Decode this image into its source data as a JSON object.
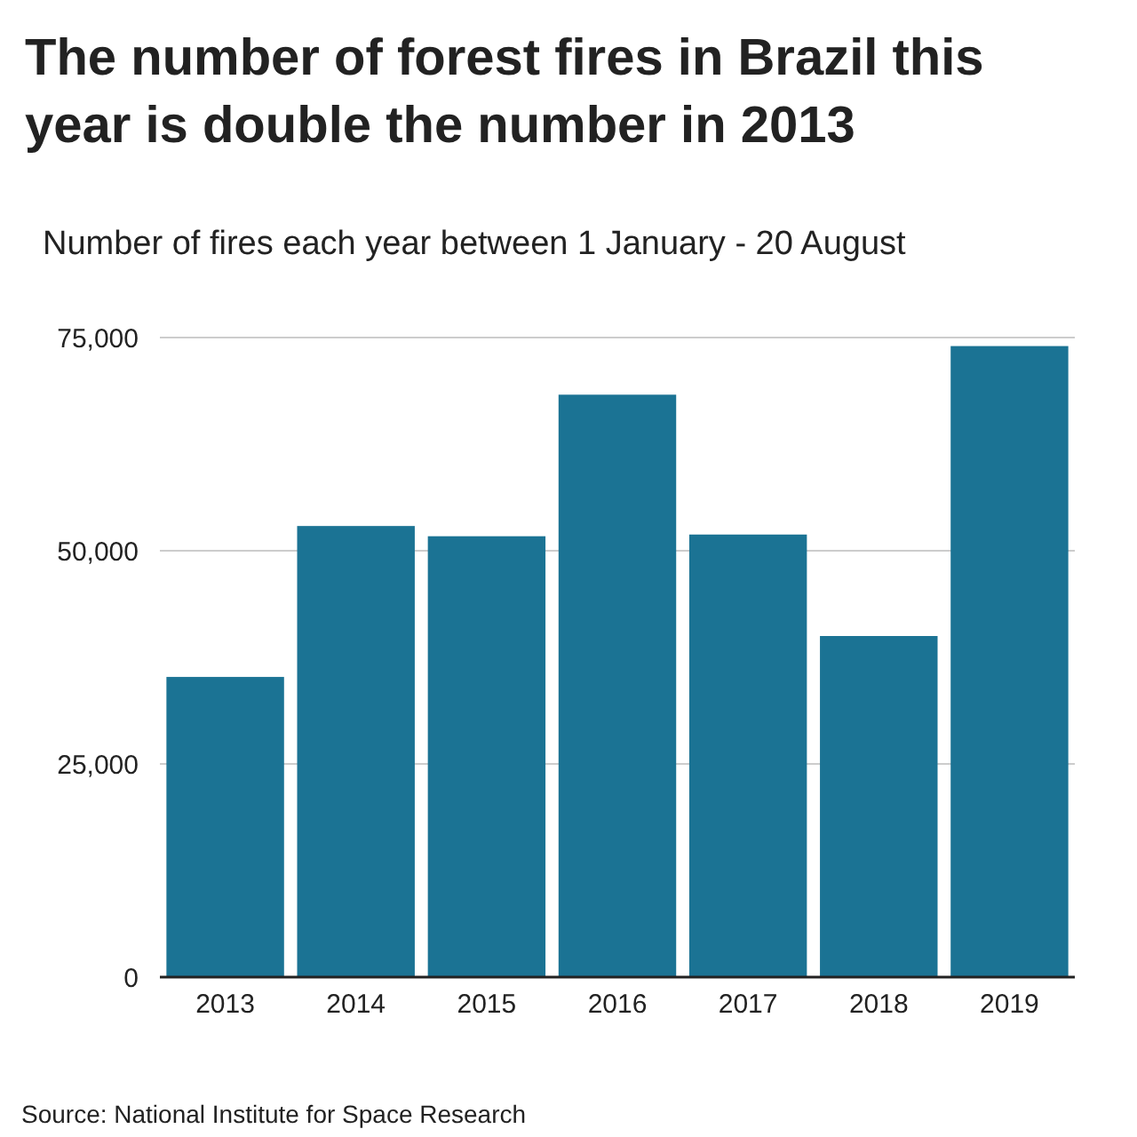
{
  "chart_data": {
    "type": "bar",
    "title": "The number of forest fires in Brazil this year is double the number in 2013",
    "subtitle": "Number of fires each year between 1 January - 20 August",
    "categories": [
      "2013",
      "2014",
      "2015",
      "2016",
      "2017",
      "2018",
      "2019"
    ],
    "values": [
      35200,
      52900,
      51700,
      68300,
      51900,
      40000,
      74000
    ],
    "color": "#1b7394",
    "ylim": [
      0,
      75000
    ],
    "yticks": [
      {
        "value": 0,
        "label": "0"
      },
      {
        "value": 25000,
        "label": "25,000"
      },
      {
        "value": 50000,
        "label": "50,000"
      },
      {
        "value": 75000,
        "label": "75,000"
      }
    ],
    "grid": "y",
    "annotations": [
      "Source: National Institute for Space Research"
    ]
  }
}
